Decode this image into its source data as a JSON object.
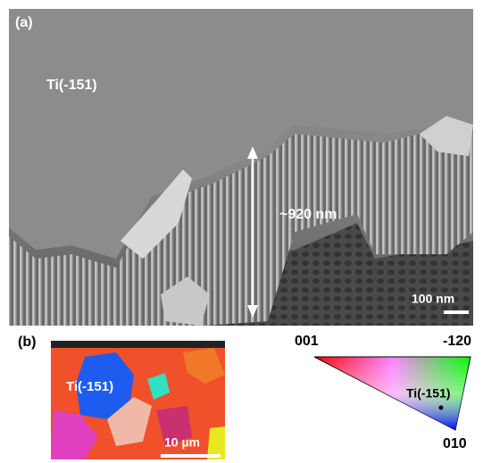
{
  "panel_a": {
    "label": "(a)",
    "orientation": "Ti(-151)",
    "thickness": "~920 nm",
    "scale_bar": "100 nm"
  },
  "panel_b": {
    "label": "(b)",
    "orientation": "Ti(-151)",
    "scale_bar": "10 µm",
    "legend": {
      "corner_001": "001",
      "corner_120": "-120",
      "corner_010": "010",
      "point": "Ti(-151)"
    }
  }
}
